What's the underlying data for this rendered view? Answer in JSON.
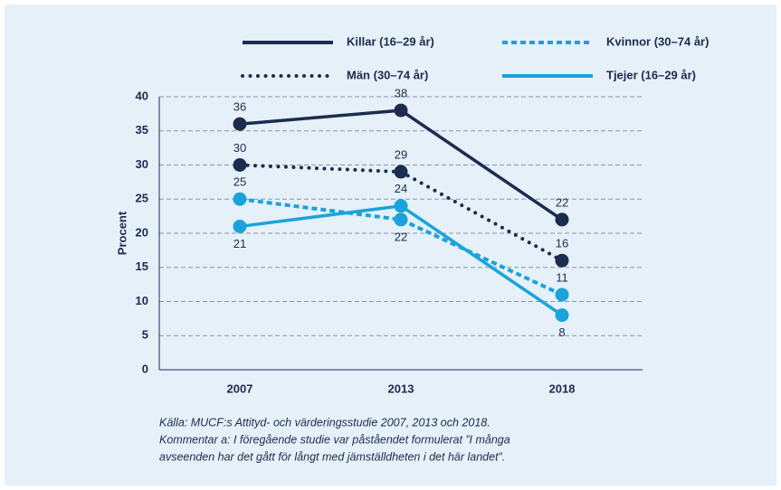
{
  "chart_data": {
    "type": "line",
    "y_label": "Procent",
    "categories": [
      "2007",
      "2013",
      "2018"
    ],
    "series": [
      {
        "name": "Killar (16–29 år)",
        "color": "#1b2c4e",
        "style": "solid",
        "values": [
          36,
          38,
          22
        ]
      },
      {
        "name": "Kvinnor (30–74 år)",
        "color": "#1aa3db",
        "style": "dashed",
        "values": [
          25,
          22,
          11
        ]
      },
      {
        "name": "Män (30–74 år)",
        "color": "#1b2c4e",
        "style": "dotted",
        "values": [
          30,
          29,
          16
        ]
      },
      {
        "name": "Tjejer (16–29 år)",
        "color": "#1aa3db",
        "style": "solid",
        "values": [
          21,
          24,
          8
        ]
      }
    ],
    "ylim": [
      0,
      40
    ],
    "yticks": [
      0,
      5,
      10,
      15,
      20,
      25,
      30,
      35,
      40
    ],
    "grid": true,
    "notes": [
      "Källa: MUCF:s Attityd- och värderingsstudie 2007, 2013 och 2018.",
      "Kommentar a: I föregående studie var påståendet formulerat ”I många",
      "avseenden har det gått för långt med jämställdheten i det här landet”."
    ]
  }
}
